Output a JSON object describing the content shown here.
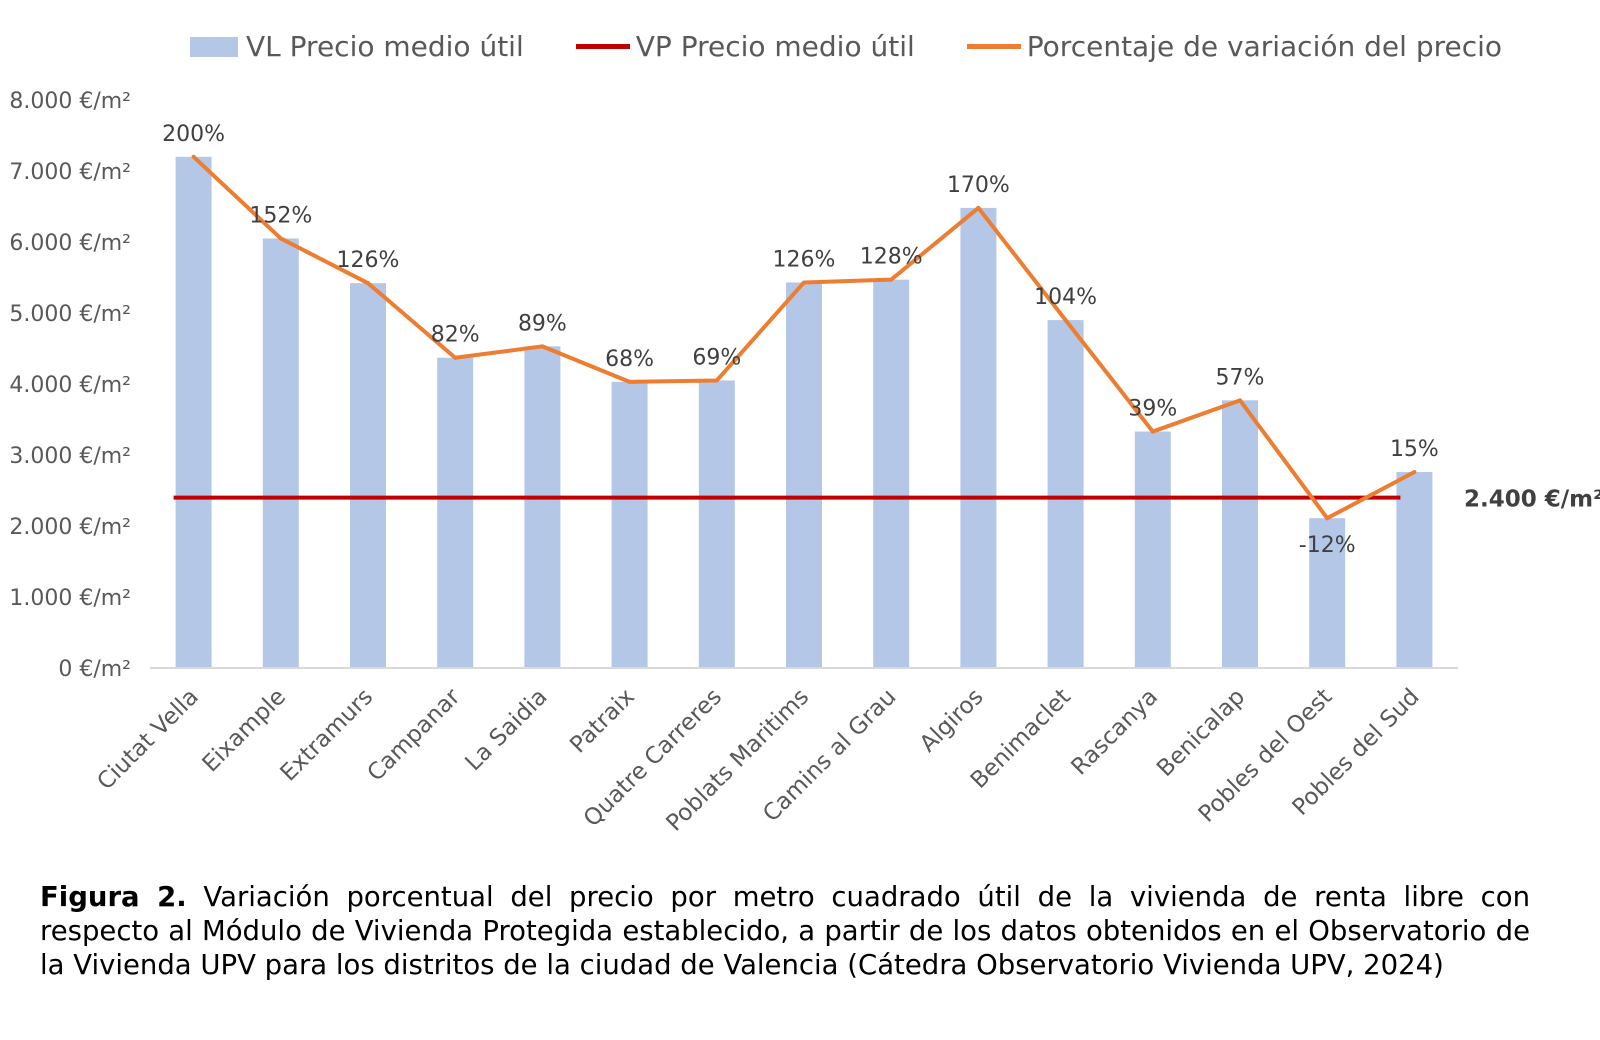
{
  "chart_data": {
    "type": "bar",
    "categories": [
      "Ciutat Vella",
      "Eixample",
      "Extramurs",
      "Campanar",
      "La Saidia",
      "Patraix",
      "Quatre Carreres",
      "Poblats Maritims",
      "Camins al Grau",
      "Algiros",
      "Benimaclet",
      "Rascanya",
      "Benicalap",
      "Pobles del Oest",
      "Pobles del Sud"
    ],
    "series": [
      {
        "name": "VL Precio medio útil",
        "type": "bar",
        "color": "#b4c7e7",
        "values": [
          7200,
          6050,
          5420,
          4370,
          4530,
          4030,
          4050,
          5430,
          5470,
          6480,
          4900,
          3330,
          3770,
          2110,
          2760
        ]
      },
      {
        "name": "VP Precio medio útil",
        "type": "line",
        "color": "#c00000",
        "values": [
          2400,
          2400,
          2400,
          2400,
          2400,
          2400,
          2400,
          2400,
          2400,
          2400,
          2400,
          2400,
          2400,
          2400,
          2400
        ]
      },
      {
        "name": "Porcentaje de variación del precio",
        "type": "line",
        "color": "#ed7d31",
        "values": [
          200,
          152,
          126,
          82,
          89,
          68,
          69,
          126,
          128,
          170,
          104,
          39,
          57,
          -12,
          15
        ]
      }
    ],
    "data_labels": [
      "200%",
      "152%",
      "126%",
      "82%",
      "89%",
      "68%",
      "69%",
      "126%",
      "128%",
      "170%",
      "104%",
      "39%",
      "57%",
      "-12%",
      "15%"
    ],
    "y_ticks": [
      "0 €/m²",
      "1.000 €/m²",
      "2.000 €/m²",
      "3.000 €/m²",
      "4.000 €/m²",
      "5.000 €/m²",
      "6.000 €/m²",
      "7.000 €/m²",
      "8.000 €/m²"
    ],
    "ylim": [
      0,
      8000
    ],
    "reference_label": "2.400 €/m²",
    "legend_position": "top",
    "grid": false
  },
  "caption": {
    "prefix": "Figura 2.",
    "text": " Variación porcentual del precio por metro cuadrado útil de la vivienda de renta libre con respecto al Módulo de Vivienda Protegida establecido, a partir de los datos obtenidos en el Observatorio de la Vivienda  UPV para los distritos de la ciudad de Valencia (Cátedra Observatorio Vivienda UPV, 2024)"
  }
}
